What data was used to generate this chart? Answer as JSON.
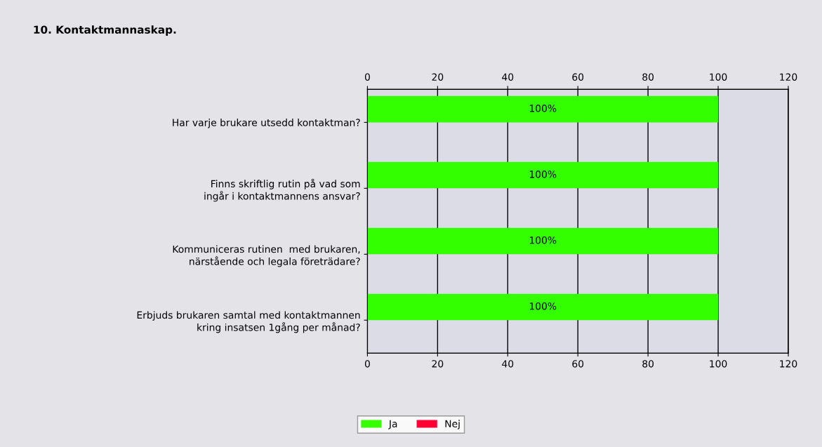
{
  "chart_data": {
    "type": "bar",
    "orientation": "horizontal",
    "title": "10. Kontaktmannaskap.",
    "categories": [
      "Har varje brukare utsedd kontaktman?",
      "Finns skriftlig rutin på vad som\ningår i kontaktmannens ansvar?",
      "Kommuniceras rutinen  med brukaren,\nnärstående och legala företrädare?",
      "Erbjuds brukaren samtal med kontaktmannen\nkring insatsen 1gång per månad?"
    ],
    "series": [
      {
        "name": "Ja",
        "color": "#33ff00",
        "values": [
          100,
          100,
          100,
          100
        ],
        "value_labels": [
          "100%",
          "100%",
          "100%",
          "100%"
        ]
      },
      {
        "name": "Nej",
        "color": "#ff0033",
        "values": [
          0,
          0,
          0,
          0
        ],
        "value_labels": [
          null,
          null,
          null,
          null
        ]
      }
    ],
    "xlim": [
      0,
      120
    ],
    "xticks": [
      0,
      20,
      40,
      60,
      80,
      100,
      120
    ],
    "x2lim": [
      0,
      120
    ],
    "x2ticks": [
      0,
      20,
      40,
      60,
      80,
      100,
      120
    ],
    "grid": "x",
    "legend": "bottom"
  }
}
